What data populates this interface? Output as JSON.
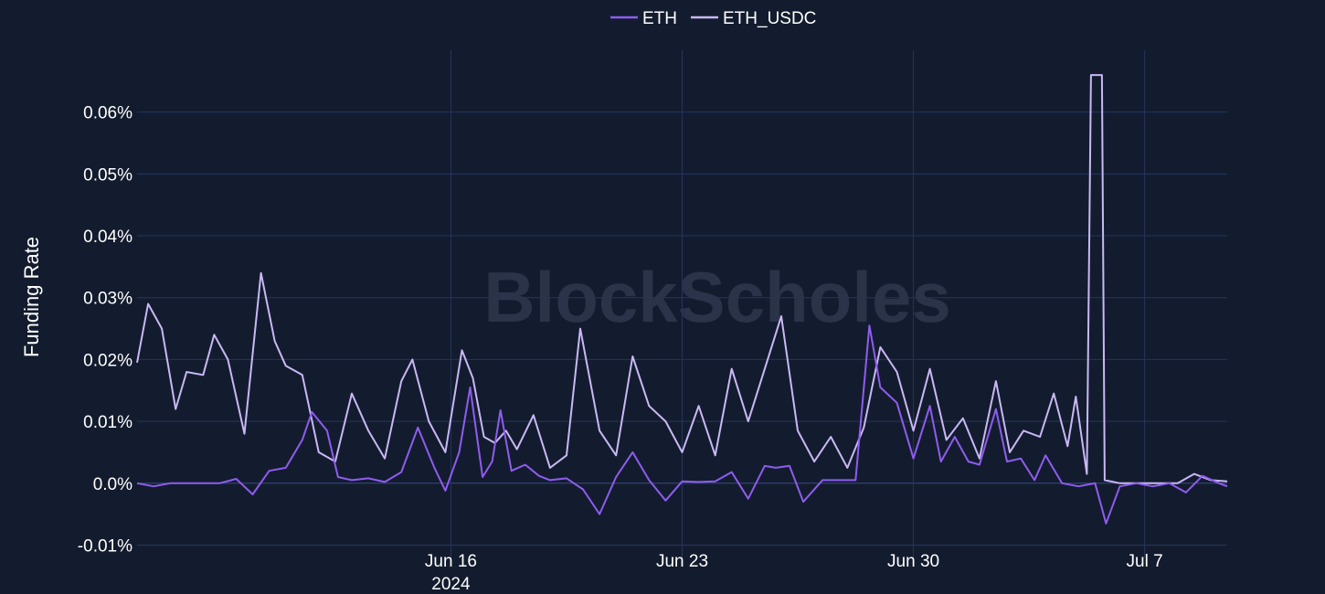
{
  "watermark": "BlockScholes",
  "chart_data": {
    "type": "line",
    "title": "",
    "ylabel": "Funding Rate",
    "xlabel": "",
    "ylim": [
      -0.012,
      0.07
    ],
    "x_range": [
      "2024-06-06T12:00",
      "2024-07-09T12:00"
    ],
    "y_ticks": [
      {
        "value": -0.01,
        "label": "-0.01%"
      },
      {
        "value": 0.0,
        "label": "0.0%"
      },
      {
        "value": 0.01,
        "label": "0.01%"
      },
      {
        "value": 0.02,
        "label": "0.02%"
      },
      {
        "value": 0.03,
        "label": "0.03%"
      },
      {
        "value": 0.04,
        "label": "0.04%"
      },
      {
        "value": 0.05,
        "label": "0.05%"
      },
      {
        "value": 0.06,
        "label": "0.06%"
      }
    ],
    "x_ticks": [
      {
        "date": "2024-06-16",
        "label": "Jun 16",
        "sublabel": "2024"
      },
      {
        "date": "2024-06-23",
        "label": "Jun 23",
        "sublabel": ""
      },
      {
        "date": "2024-06-30",
        "label": "Jun 30",
        "sublabel": ""
      },
      {
        "date": "2024-07-07",
        "label": "Jul 7",
        "sublabel": ""
      }
    ],
    "grid": true,
    "legend_position": "top-center",
    "series": [
      {
        "name": "ETH",
        "color": "#8f5cf0",
        "points": [
          [
            "2024-06-06T12:00",
            0.0
          ],
          [
            "2024-06-07T00:00",
            -0.0005
          ],
          [
            "2024-06-07T12:00",
            0.0
          ],
          [
            "2024-06-08T00:00",
            0.0
          ],
          [
            "2024-06-08T12:00",
            0.0
          ],
          [
            "2024-06-09T00:00",
            0.0
          ],
          [
            "2024-06-09T12:00",
            0.0007
          ],
          [
            "2024-06-10T00:00",
            -0.0018
          ],
          [
            "2024-06-10T12:00",
            0.002
          ],
          [
            "2024-06-11T00:00",
            0.0025
          ],
          [
            "2024-06-11T12:00",
            0.007
          ],
          [
            "2024-06-11T19:00",
            0.0115
          ],
          [
            "2024-06-12T06:00",
            0.0085
          ],
          [
            "2024-06-12T14:00",
            0.001
          ],
          [
            "2024-06-13T00:00",
            0.0005
          ],
          [
            "2024-06-13T12:00",
            0.0008
          ],
          [
            "2024-06-14T00:00",
            0.0002
          ],
          [
            "2024-06-14T12:00",
            0.0018
          ],
          [
            "2024-06-15T00:00",
            0.009
          ],
          [
            "2024-06-15T12:00",
            0.0025
          ],
          [
            "2024-06-15T20:00",
            -0.0012
          ],
          [
            "2024-06-16T06:00",
            0.005
          ],
          [
            "2024-06-16T14:00",
            0.0155
          ],
          [
            "2024-06-16T23:00",
            0.001
          ],
          [
            "2024-06-17T06:00",
            0.0035
          ],
          [
            "2024-06-17T12:00",
            0.0118
          ],
          [
            "2024-06-17T20:00",
            0.002
          ],
          [
            "2024-06-18T06:00",
            0.003
          ],
          [
            "2024-06-18T16:00",
            0.0012
          ],
          [
            "2024-06-19T00:00",
            0.0005
          ],
          [
            "2024-06-19T12:00",
            0.0008
          ],
          [
            "2024-06-20T00:00",
            -0.001
          ],
          [
            "2024-06-20T12:00",
            -0.005
          ],
          [
            "2024-06-21T00:00",
            0.001
          ],
          [
            "2024-06-21T12:00",
            0.005
          ],
          [
            "2024-06-22T00:00",
            0.0005
          ],
          [
            "2024-06-22T12:00",
            -0.0028
          ],
          [
            "2024-06-23T00:00",
            0.0003
          ],
          [
            "2024-06-23T12:00",
            0.0002
          ],
          [
            "2024-06-24T00:00",
            0.0003
          ],
          [
            "2024-06-24T12:00",
            0.0018
          ],
          [
            "2024-06-25T00:00",
            -0.0025
          ],
          [
            "2024-06-25T12:00",
            0.0028
          ],
          [
            "2024-06-25T20:00",
            0.0025
          ],
          [
            "2024-06-26T06:00",
            0.0028
          ],
          [
            "2024-06-26T16:00",
            -0.003
          ],
          [
            "2024-06-27T06:00",
            0.0005
          ],
          [
            "2024-06-27T18:00",
            0.0005
          ],
          [
            "2024-06-28T06:00",
            0.0005
          ],
          [
            "2024-06-28T16:00",
            0.0255
          ],
          [
            "2024-06-29T00:00",
            0.0155
          ],
          [
            "2024-06-29T12:00",
            0.013
          ],
          [
            "2024-06-30T00:00",
            0.004
          ],
          [
            "2024-06-30T12:00",
            0.0125
          ],
          [
            "2024-06-30T20:00",
            0.0035
          ],
          [
            "2024-07-01T06:00",
            0.0075
          ],
          [
            "2024-07-01T16:00",
            0.0035
          ],
          [
            "2024-07-02T00:00",
            0.003
          ],
          [
            "2024-07-02T12:00",
            0.012
          ],
          [
            "2024-07-02T20:00",
            0.0035
          ],
          [
            "2024-07-03T06:00",
            0.004
          ],
          [
            "2024-07-03T16:00",
            0.0005
          ],
          [
            "2024-07-04T00:00",
            0.0045
          ],
          [
            "2024-07-04T12:00",
            0.0
          ],
          [
            "2024-07-05T00:00",
            -0.0005
          ],
          [
            "2024-07-05T12:00",
            0.0
          ],
          [
            "2024-07-05T20:00",
            -0.0065
          ],
          [
            "2024-07-06T06:00",
            -0.0005
          ],
          [
            "2024-07-06T18:00",
            0.0
          ],
          [
            "2024-07-07T06:00",
            -0.0005
          ],
          [
            "2024-07-07T18:00",
            0.0
          ],
          [
            "2024-07-08T06:00",
            -0.0015
          ],
          [
            "2024-07-08T18:00",
            0.0012
          ],
          [
            "2024-07-09T06:00",
            0.0
          ],
          [
            "2024-07-09T12:00",
            -0.0005
          ]
        ]
      },
      {
        "name": "ETH_USDC",
        "color": "#c9b8f5",
        "points": [
          [
            "2024-06-06T12:00",
            0.0195
          ],
          [
            "2024-06-06T20:00",
            0.029
          ],
          [
            "2024-06-07T06:00",
            0.025
          ],
          [
            "2024-06-07T16:00",
            0.012
          ],
          [
            "2024-06-08T00:00",
            0.018
          ],
          [
            "2024-06-08T12:00",
            0.0175
          ],
          [
            "2024-06-08T20:00",
            0.024
          ],
          [
            "2024-06-09T06:00",
            0.02
          ],
          [
            "2024-06-09T18:00",
            0.008
          ],
          [
            "2024-06-10T06:00",
            0.034
          ],
          [
            "2024-06-10T16:00",
            0.023
          ],
          [
            "2024-06-11T00:00",
            0.019
          ],
          [
            "2024-06-11T12:00",
            0.0175
          ],
          [
            "2024-06-12T00:00",
            0.005
          ],
          [
            "2024-06-12T12:00",
            0.0035
          ],
          [
            "2024-06-13T00:00",
            0.0145
          ],
          [
            "2024-06-13T12:00",
            0.0085
          ],
          [
            "2024-06-14T00:00",
            0.004
          ],
          [
            "2024-06-14T12:00",
            0.0165
          ],
          [
            "2024-06-14T20:00",
            0.02
          ],
          [
            "2024-06-15T08:00",
            0.01
          ],
          [
            "2024-06-15T20:00",
            0.005
          ],
          [
            "2024-06-16T08:00",
            0.0215
          ],
          [
            "2024-06-16T16:00",
            0.017
          ],
          [
            "2024-06-17T00:00",
            0.0075
          ],
          [
            "2024-06-17T08:00",
            0.0065
          ],
          [
            "2024-06-17T16:00",
            0.0085
          ],
          [
            "2024-06-18T00:00",
            0.0055
          ],
          [
            "2024-06-18T12:00",
            0.011
          ],
          [
            "2024-06-19T00:00",
            0.0025
          ],
          [
            "2024-06-19T12:00",
            0.0045
          ],
          [
            "2024-06-19T22:00",
            0.025
          ],
          [
            "2024-06-20T12:00",
            0.0085
          ],
          [
            "2024-06-21T00:00",
            0.0045
          ],
          [
            "2024-06-21T12:00",
            0.0205
          ],
          [
            "2024-06-22T00:00",
            0.0125
          ],
          [
            "2024-06-22T12:00",
            0.01
          ],
          [
            "2024-06-23T00:00",
            0.005
          ],
          [
            "2024-06-23T12:00",
            0.0125
          ],
          [
            "2024-06-24T00:00",
            0.0045
          ],
          [
            "2024-06-24T12:00",
            0.0185
          ],
          [
            "2024-06-25T00:00",
            0.01
          ],
          [
            "2024-06-25T12:00",
            0.0185
          ],
          [
            "2024-06-26T00:00",
            0.027
          ],
          [
            "2024-06-26T12:00",
            0.0085
          ],
          [
            "2024-06-27T00:00",
            0.0035
          ],
          [
            "2024-06-27T12:00",
            0.0075
          ],
          [
            "2024-06-28T00:00",
            0.0025
          ],
          [
            "2024-06-28T12:00",
            0.009
          ],
          [
            "2024-06-29T00:00",
            0.022
          ],
          [
            "2024-06-29T12:00",
            0.018
          ],
          [
            "2024-06-30T00:00",
            0.0085
          ],
          [
            "2024-06-30T12:00",
            0.0185
          ],
          [
            "2024-07-01T00:00",
            0.007
          ],
          [
            "2024-07-01T12:00",
            0.0105
          ],
          [
            "2024-07-02T00:00",
            0.004
          ],
          [
            "2024-07-02T12:00",
            0.0165
          ],
          [
            "2024-07-02T22:00",
            0.005
          ],
          [
            "2024-07-03T08:00",
            0.0085
          ],
          [
            "2024-07-03T20:00",
            0.0075
          ],
          [
            "2024-07-04T06:00",
            0.0145
          ],
          [
            "2024-07-04T16:00",
            0.006
          ],
          [
            "2024-07-04T22:00",
            0.014
          ],
          [
            "2024-07-05T06:00",
            0.0015
          ],
          [
            "2024-07-05T09:00",
            0.066
          ],
          [
            "2024-07-05T17:00",
            0.066
          ],
          [
            "2024-07-05T19:00",
            0.0005
          ],
          [
            "2024-07-06T06:00",
            0.0
          ],
          [
            "2024-07-07T00:00",
            0.0
          ],
          [
            "2024-07-08T00:00",
            0.0
          ],
          [
            "2024-07-08T12:00",
            0.0015
          ],
          [
            "2024-07-09T00:00",
            0.0005
          ],
          [
            "2024-07-09T12:00",
            0.0003
          ]
        ]
      }
    ]
  }
}
